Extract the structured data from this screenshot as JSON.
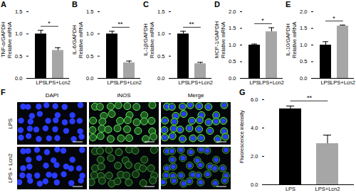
{
  "chart_data": [
    {
      "type": "bar",
      "title": "A",
      "y_label": "TNF-α/GAPDH\nRelative mRNA",
      "categories": [
        "LPS",
        "LPS+Lcn2"
      ],
      "values": [
        1.0,
        0.63
      ],
      "errors": [
        0.08,
        0.06
      ],
      "colors": [
        "#000000",
        "#a6a6a6"
      ],
      "ylim": [
        0,
        1.5
      ],
      "yticks": [
        {
          "value": 0,
          "label": "0.0"
        },
        0.5,
        {
          "value": 1,
          "label": "1.0"
        },
        1.5
      ],
      "annotations": [
        {
          "text": "*",
          "from": "LPS",
          "to": "LPS+Lcn2"
        }
      ]
    },
    {
      "type": "bar",
      "title": "B",
      "y_label": "IL-6/GAPDH\nRelative mRNA",
      "categories": [
        "LPS",
        "LPS+Lcn2"
      ],
      "values": [
        1.0,
        0.35
      ],
      "errors": [
        0.06,
        0.04
      ],
      "colors": [
        "#000000",
        "#a6a6a6"
      ],
      "ylim": [
        0,
        1.5
      ],
      "yticks": [
        {
          "value": 0,
          "label": "0.0"
        },
        0.5,
        {
          "value": 1,
          "label": "1.0"
        },
        1.5
      ],
      "annotations": [
        {
          "text": "**",
          "from": "LPS",
          "to": "LPS+Lcn2"
        }
      ]
    },
    {
      "type": "bar",
      "title": "C",
      "y_label": "IL-1β/GAPDH\nRelative mRNA",
      "categories": [
        "LPS",
        "LPS+Lcn2"
      ],
      "values": [
        1.0,
        0.33
      ],
      "errors": [
        0.06,
        0.03
      ],
      "colors": [
        "#000000",
        "#a6a6a6"
      ],
      "ylim": [
        0,
        1.5
      ],
      "yticks": [
        {
          "value": 0,
          "label": "0.0"
        },
        0.5,
        {
          "value": 1,
          "label": "1.0"
        },
        1.5
      ],
      "annotations": [
        {
          "text": "**",
          "from": "LPS",
          "to": "LPS+Lcn2"
        }
      ]
    },
    {
      "type": "bar",
      "title": "D",
      "y_label": "MCP-1/GAPDH\nRelative mRNA",
      "categories": [
        "LPS",
        "LPS+Lcn2"
      ],
      "values": [
        1.0,
        1.4
      ],
      "errors": [
        0.03,
        0.12
      ],
      "colors": [
        "#000000",
        "#a6a6a6"
      ],
      "ylim": [
        0,
        2
      ],
      "yticks": [
        {
          "value": 0,
          "label": "0.0"
        },
        0.5,
        {
          "value": 1,
          "label": "1.0"
        },
        1.5,
        {
          "value": 2,
          "label": "2.0"
        }
      ],
      "annotations": [
        {
          "text": "*",
          "from": "LPS",
          "to": "LPS+Lcn2"
        }
      ]
    },
    {
      "type": "bar",
      "title": "E",
      "y_label": "IL-10/GAPDH\nRelative mRNA",
      "categories": [
        "LPS",
        "LPS+Lcn2"
      ],
      "values": [
        1.0,
        1.57
      ],
      "errors": [
        0.1,
        0.03
      ],
      "colors": [
        "#000000",
        "#a6a6a6"
      ],
      "ylim": [
        0,
        2
      ],
      "yticks": [
        {
          "value": 0,
          "label": "0.0"
        },
        0.5,
        {
          "value": 1,
          "label": "1.0"
        },
        1.5,
        {
          "value": 2,
          "label": "2.0"
        }
      ],
      "annotations": [
        {
          "text": "*",
          "from": "LPS",
          "to": "LPS+Lcn2"
        }
      ]
    },
    {
      "type": "bar",
      "title": "G",
      "y_label": "Fluorescence intensity",
      "categories": [
        "LPS",
        "LPS+Lcn2"
      ],
      "values": [
        5.35,
        2.9
      ],
      "errors": [
        0.2,
        0.6
      ],
      "colors": [
        "#000000",
        "#a6a6a6"
      ],
      "ylim": [
        0,
        6
      ],
      "yticks": [
        {
          "value": 0,
          "label": "0.0"
        },
        {
          "value": 2,
          "label": "2.0"
        },
        {
          "value": 4,
          "label": "4.0"
        },
        {
          "value": 6,
          "label": "6.0"
        }
      ],
      "annotations": [
        {
          "text": "**",
          "from": "LPS",
          "to": "LPS+Lcn2"
        }
      ]
    }
  ],
  "micrographs": {
    "title": "F",
    "columns": [
      "DAPI",
      "iNOS",
      "Merge"
    ],
    "rows": [
      "LPS",
      "LPS + Lcn2"
    ]
  }
}
